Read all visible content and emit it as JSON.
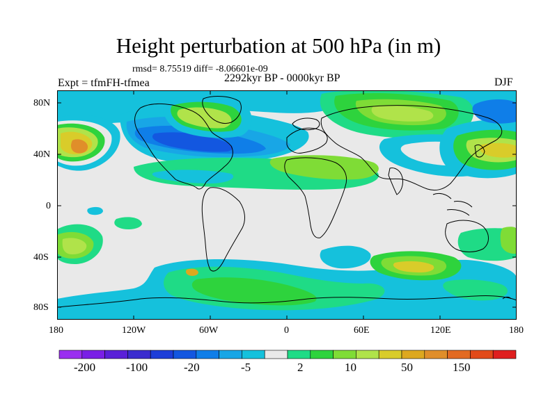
{
  "title": "Height perturbation at 500 hPa (in m)",
  "stats": "rmsd= 8.75519 diff= -8.06601e-09",
  "experiment": "Expt = tfmFH-tfmea",
  "period": "2292kyr BP - 0000kyr BP",
  "season": "DJF",
  "map": {
    "y_axis_labels": [
      "80N",
      "40N",
      "0",
      "40S",
      "80S"
    ],
    "x_axis_labels": [
      "180",
      "120W",
      "60W",
      "0",
      "60E",
      "120E",
      "180"
    ]
  },
  "colorbar": {
    "colors": [
      "#9a2ff0",
      "#7a1fe6",
      "#5a20d8",
      "#3b2ccf",
      "#1d3ed8",
      "#1357e0",
      "#0f7ee8",
      "#18a6e6",
      "#15c1dc",
      "#e9e9e9",
      "#1fdb86",
      "#2ed33d",
      "#7fdc36",
      "#b0e34a",
      "#d9cc2a",
      "#dda81f",
      "#e08e2a",
      "#e26a22",
      "#e24a1a",
      "#df1f1f"
    ],
    "labels": [
      "-200",
      "-100",
      "-20",
      "-5",
      "2",
      "10",
      "50",
      "150"
    ]
  }
}
